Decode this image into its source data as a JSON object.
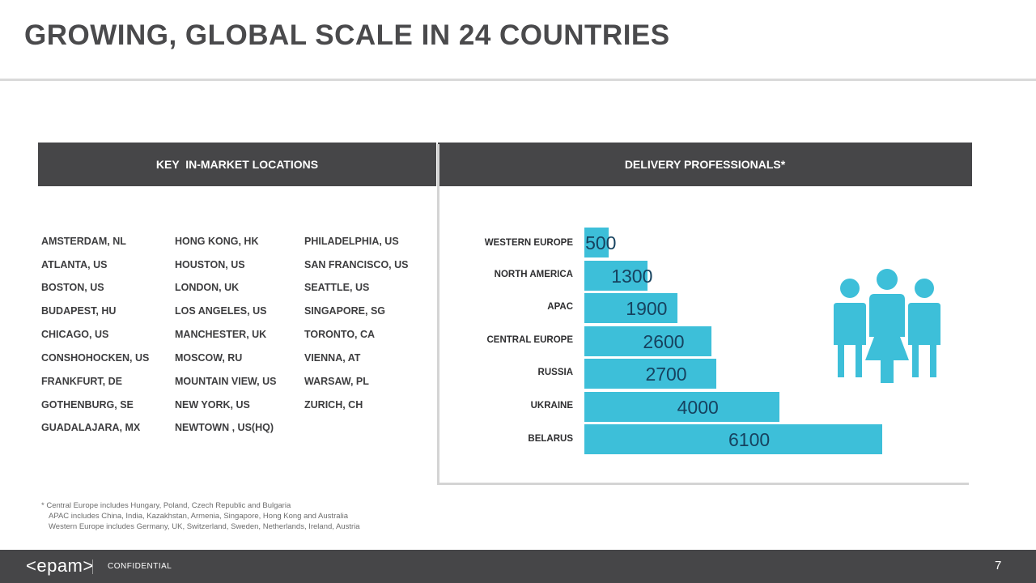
{
  "title": "GROWING, GLOBAL SCALE IN 24 COUNTRIES",
  "headers": {
    "left": "KEY  IN-MARKET LOCATIONS",
    "right": "DELIVERY PROFESSIONALS*"
  },
  "locations": {
    "col1": [
      "AMSTERDAM, NL",
      "ATLANTA, US",
      "BOSTON, US",
      "BUDAPEST, HU",
      "CHICAGO, US",
      "CONSHOHOCKEN, US",
      "FRANKFURT, DE",
      "GOTHENBURG, SE",
      "GUADALAJARA, MX"
    ],
    "col2": [
      "HONG KONG, HK",
      "HOUSTON, US",
      "LONDON, UK",
      "LOS ANGELES, US",
      "MANCHESTER, UK",
      "MOSCOW, RU",
      "MOUNTAIN VIEW, US",
      "NEW YORK, US",
      "NEWTOWN , US(HQ)"
    ],
    "col3": [
      "PHILADELPHIA, US",
      "SAN FRANCISCO, US",
      "SEATTLE, US",
      "SINGAPORE, SG",
      "TORONTO, CA",
      "VIENNA, AT",
      "WARSAW, PL",
      "ZURICH, CH"
    ]
  },
  "chart_data": {
    "type": "bar",
    "orientation": "horizontal",
    "categories": [
      "WESTERN EUROPE",
      "NORTH AMERICA",
      "APAC",
      "CENTRAL EUROPE",
      "RUSSIA",
      "UKRAINE",
      "BELARUS"
    ],
    "values": [
      500,
      1300,
      1900,
      2600,
      2700,
      4000,
      6100
    ],
    "labels": [
      "500",
      "1300",
      "1900",
      "2600",
      "2700",
      "4000",
      "6100"
    ],
    "bar_color": "#3dbfd9",
    "label_color": "#16425f"
  },
  "footnotes": [
    "* Central Europe includes Hungary, Poland, Czech Republic and Bulgaria",
    "APAC includes China, India, Kazakhstan, Armenia, Singapore, Hong Kong and Australia",
    "Western Europe includes Germany, UK, Switzerland, Sweden, Netherlands, Ireland, Austria"
  ],
  "footer": {
    "logo": "<epam>",
    "confidential": "CONFIDENTIAL",
    "page_number": "7"
  },
  "icons": {
    "people": "people-group-icon",
    "people_color": "#3dbfd9"
  }
}
